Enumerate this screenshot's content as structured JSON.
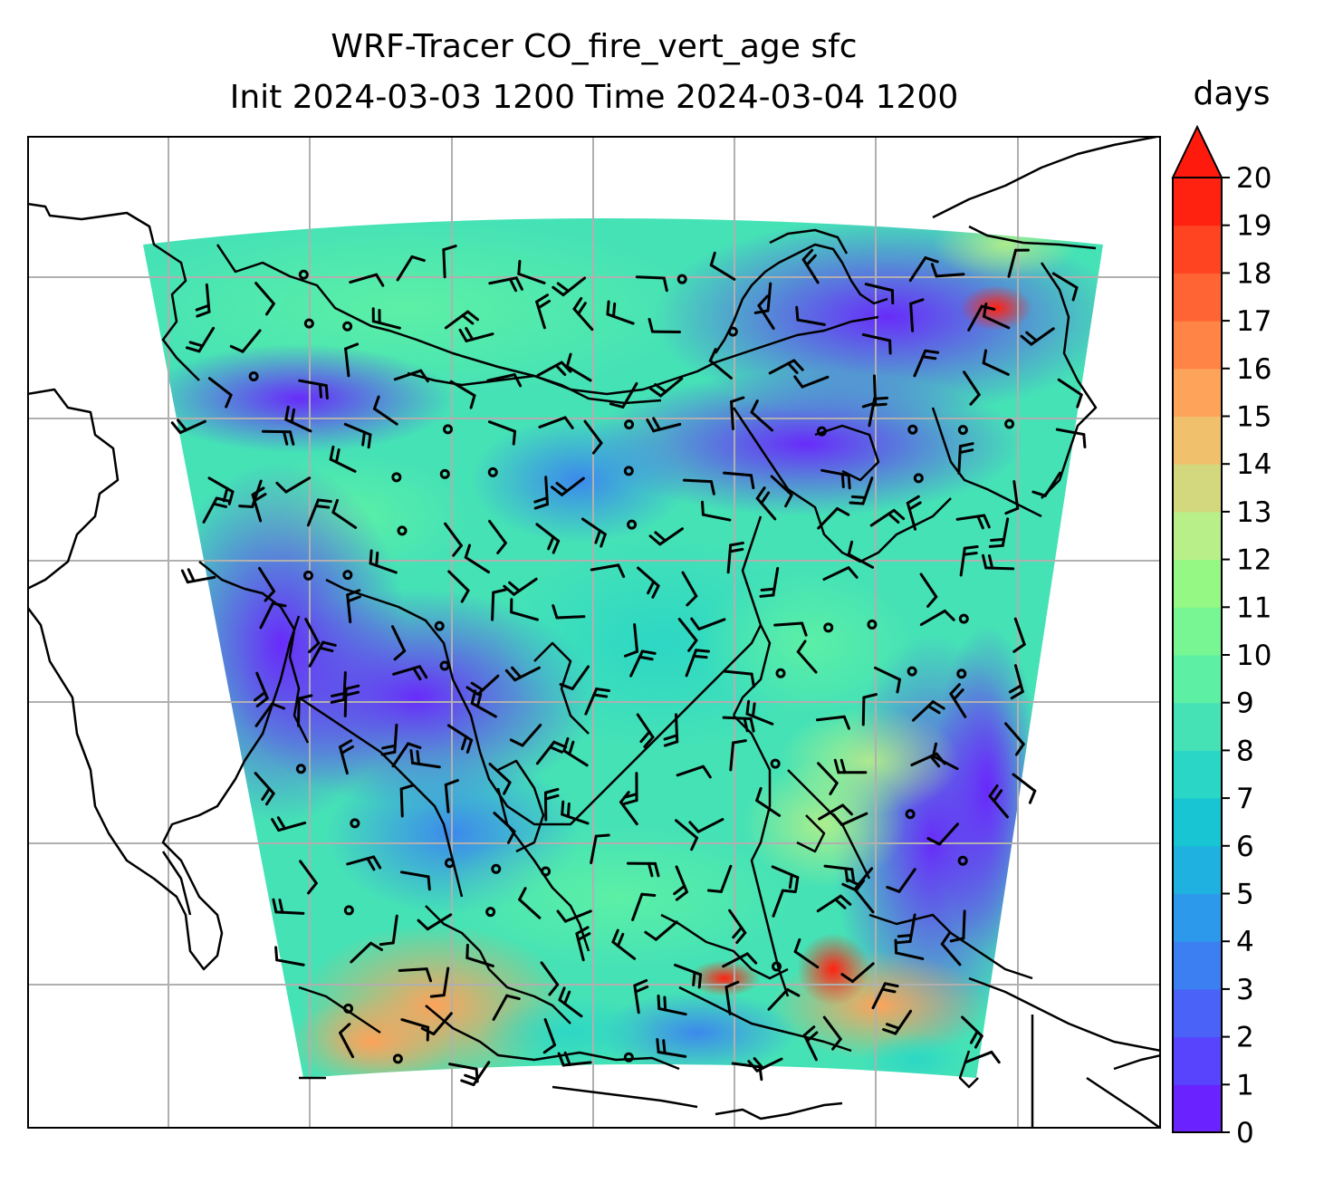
{
  "title_line1": "WRF-Tracer CO_fire_vert_age sfc",
  "title_line2": "Init 2024-03-03 1200 Time 2024-03-04 1200",
  "colorbar": {
    "unit": "days",
    "ticks": [
      "0",
      "1",
      "2",
      "3",
      "4",
      "5",
      "6",
      "7",
      "8",
      "9",
      "10",
      "11",
      "12",
      "13",
      "14",
      "15",
      "16",
      "17",
      "18",
      "19",
      "20"
    ],
    "extend": "max",
    "colors": [
      "#6a22fe",
      "#5844fd",
      "#4a62f8",
      "#3b7ff2",
      "#2d99ea",
      "#1fb1df",
      "#18c5d3",
      "#2ad6c6",
      "#45e2b6",
      "#5df0a5",
      "#77f693",
      "#95f884",
      "#b8ef88",
      "#d3d87e",
      "#f0c06d",
      "#fda35a",
      "#ff8446",
      "#ff6534",
      "#ff4422",
      "#ff2211"
    ],
    "extend_color": "#ff1a0e"
  },
  "map": {
    "gridlines": true,
    "field": "CO_fire_vert_age",
    "level": "sfc",
    "wind_barbs": true
  }
}
